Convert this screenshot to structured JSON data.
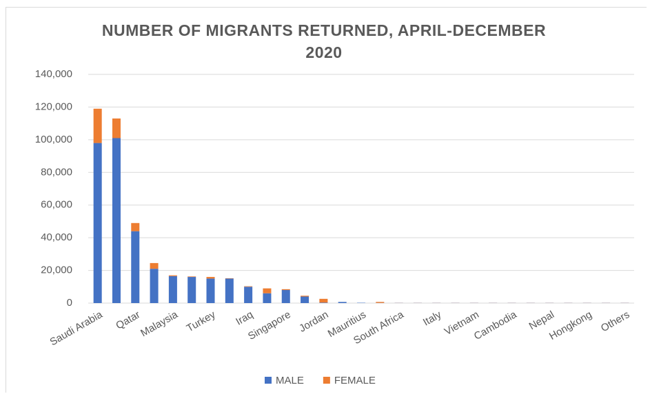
{
  "chart_data": {
    "type": "stacked_bar",
    "title": "NUMBER OF MIGRANTS RETURNED, APRIL-DECEMBER 2020",
    "categories": [
      "Saudi Arabia",
      null,
      "Qatar",
      null,
      "Malaysia",
      null,
      "Turkey",
      null,
      "Iraq",
      null,
      "Singapore",
      null,
      "Jordan",
      null,
      "Mauritius",
      null,
      "South Africa",
      null,
      "Italy",
      null,
      "Vietnam",
      null,
      "Cambodia",
      null,
      "Nepal",
      null,
      "Hongkong",
      null,
      "Others"
    ],
    "series": [
      {
        "name": "MALE",
        "color": "#4472c4",
        "values": [
          98000,
          101000,
          44000,
          21000,
          16500,
          16000,
          15000,
          15000,
          10000,
          6000,
          8000,
          4000,
          300,
          700,
          200,
          100,
          100,
          100,
          100,
          100,
          100,
          100,
          100,
          100,
          100,
          100,
          100,
          100,
          100
        ]
      },
      {
        "name": "FEMALE",
        "color": "#ed7d31",
        "values": [
          21000,
          12000,
          5000,
          3500,
          500,
          300,
          1000,
          200,
          300,
          3000,
          500,
          500,
          2300,
          0,
          0,
          600,
          50,
          50,
          50,
          50,
          50,
          50,
          50,
          50,
          50,
          50,
          50,
          50,
          50
        ]
      }
    ],
    "ylim": [
      0,
      140000
    ],
    "yticks": [
      0,
      {
        "value": 20000,
        "label": "20,000"
      },
      {
        "value": 40000,
        "label": "40,000"
      },
      {
        "value": 60000,
        "label": "60,000"
      },
      {
        "value": 80000,
        "label": "80,000"
      },
      {
        "value": 100000,
        "label": "100,000"
      },
      {
        "value": 120000,
        "label": "120,000"
      },
      {
        "value": 140000,
        "label": "140,000"
      }
    ],
    "grid": true,
    "legend": "bottom"
  }
}
